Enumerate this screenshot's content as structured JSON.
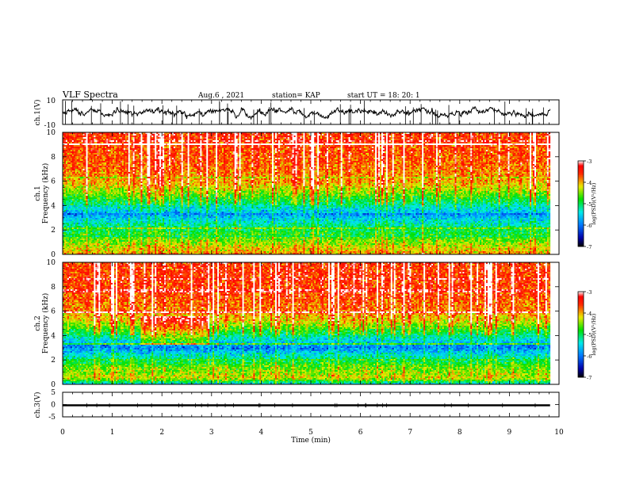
{
  "header": {
    "title": "VLF Spectra",
    "date": "Aug.6 , 2021",
    "station": "station= KAP",
    "start": "start UT = 18: 20: 1"
  },
  "chart_data": [
    {
      "type": "line",
      "name": "ch1-waveform-panel",
      "ylabel": "ch.1(V)",
      "ylim": [
        -10,
        10
      ],
      "ytick_labels": [
        "10",
        "-10"
      ],
      "xlim": [
        0,
        10
      ],
      "x_extent": [
        0,
        9.82
      ],
      "trace": {
        "mean": 0,
        "amplitude_typical": 3.5,
        "color": "#000000"
      }
    },
    {
      "type": "heatmap",
      "name": "ch1-spectrogram",
      "ylabel": "ch.1\nFrequency (kHz)",
      "ylim": [
        0,
        10
      ],
      "yticks": [
        "0",
        "2",
        "4",
        "6",
        "8",
        "10"
      ],
      "xlim": [
        0,
        10
      ],
      "x_extent": [
        0,
        9.82
      ],
      "colorbar": {
        "label": "log(PSD)(V²/Hz)",
        "range": [
          -7,
          -3
        ],
        "ticks": [
          "-3",
          "-4",
          "-5",
          "-6",
          "-7"
        ]
      },
      "band_profile_logpsd": [
        {
          "f": 0.0,
          "v": -4.0
        },
        {
          "f": 0.8,
          "v": -4.4
        },
        {
          "f": 1.5,
          "v": -4.8
        },
        {
          "f": 2.5,
          "v": -5.3
        },
        {
          "f": 3.2,
          "v": -5.8
        },
        {
          "f": 4.0,
          "v": -5.3
        },
        {
          "f": 5.0,
          "v": -4.6
        },
        {
          "f": 6.0,
          "v": -4.0
        },
        {
          "f": 7.5,
          "v": -3.8
        },
        {
          "f": 10.0,
          "v": -3.6
        }
      ]
    },
    {
      "type": "heatmap",
      "name": "ch2-spectrogram",
      "ylabel": "ch.2\nFrequency (kHz)",
      "ylim": [
        0,
        10
      ],
      "yticks": [
        "0",
        "2",
        "4",
        "6",
        "8",
        "10"
      ],
      "xlim": [
        0,
        10
      ],
      "x_extent": [
        0,
        9.82
      ],
      "colorbar": {
        "label": "log(PSD)(V²/Hz)",
        "range": [
          -7,
          -3
        ],
        "ticks": [
          "-3",
          "-4",
          "-5",
          "-6",
          "-7"
        ]
      },
      "band_profile_logpsd": [
        {
          "f": 0.0,
          "v": -5.6
        },
        {
          "f": 0.5,
          "v": -4.3
        },
        {
          "f": 1.5,
          "v": -4.7
        },
        {
          "f": 2.5,
          "v": -5.5
        },
        {
          "f": 3.0,
          "v": -6.0
        },
        {
          "f": 4.0,
          "v": -5.2
        },
        {
          "f": 5.0,
          "v": -4.4
        },
        {
          "f": 6.0,
          "v": -3.9
        },
        {
          "f": 7.5,
          "v": -3.7
        },
        {
          "f": 10.0,
          "v": -3.6
        }
      ]
    },
    {
      "type": "line",
      "name": "ch3-waveform-panel",
      "ylabel": "ch.3(V)",
      "ylim": [
        -5,
        5
      ],
      "yticks": [
        "5",
        "0",
        "-5"
      ],
      "xlim": [
        0,
        10
      ],
      "x_extent": [
        0,
        9.82
      ],
      "trace": {
        "mean": -0.3,
        "amplitude_typical": 0.4,
        "color": "#000000"
      },
      "xlabel": "Time (min)",
      "xticks": [
        "0",
        "1",
        "2",
        "3",
        "4",
        "5",
        "6",
        "7",
        "8",
        "9",
        "10"
      ]
    }
  ]
}
